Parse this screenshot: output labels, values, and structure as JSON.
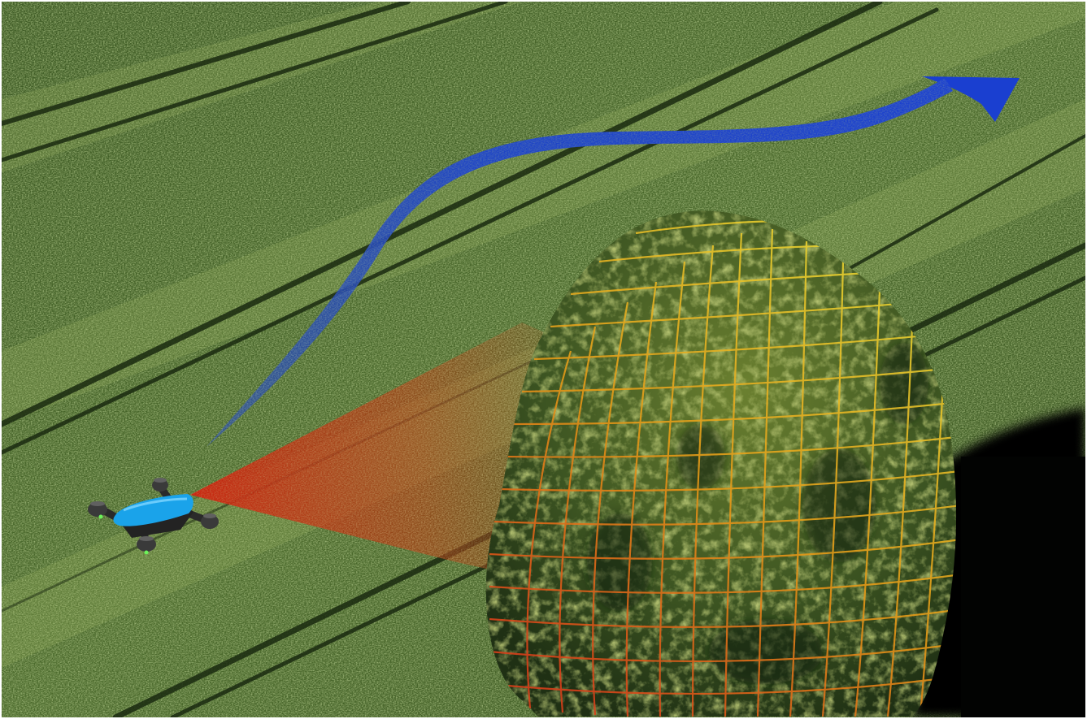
{
  "scene": {
    "subject": "drone-obstacle-avoidance",
    "elements": [
      "crop-field",
      "tree",
      "tree-shadow",
      "drone",
      "sensor-cone",
      "obstacle-mesh",
      "flight-path-arrow"
    ],
    "colors": {
      "field_dark": "#2f4a1c",
      "field_mid": "#4d6d2e",
      "field_light": "#7f9a48",
      "tramline": "#1d2e12",
      "tree_dark": "#22361a",
      "tree_light": "#7c8f32",
      "shadow": "#050805",
      "drone_body": "#1aa0e8",
      "drone_frame": "#2a2a2a",
      "sensor_cone": "#d02a12",
      "mesh_warm": "#e05a10",
      "mesh_cool": "#e8c020",
      "path_arrow": "#1e46c8"
    }
  }
}
